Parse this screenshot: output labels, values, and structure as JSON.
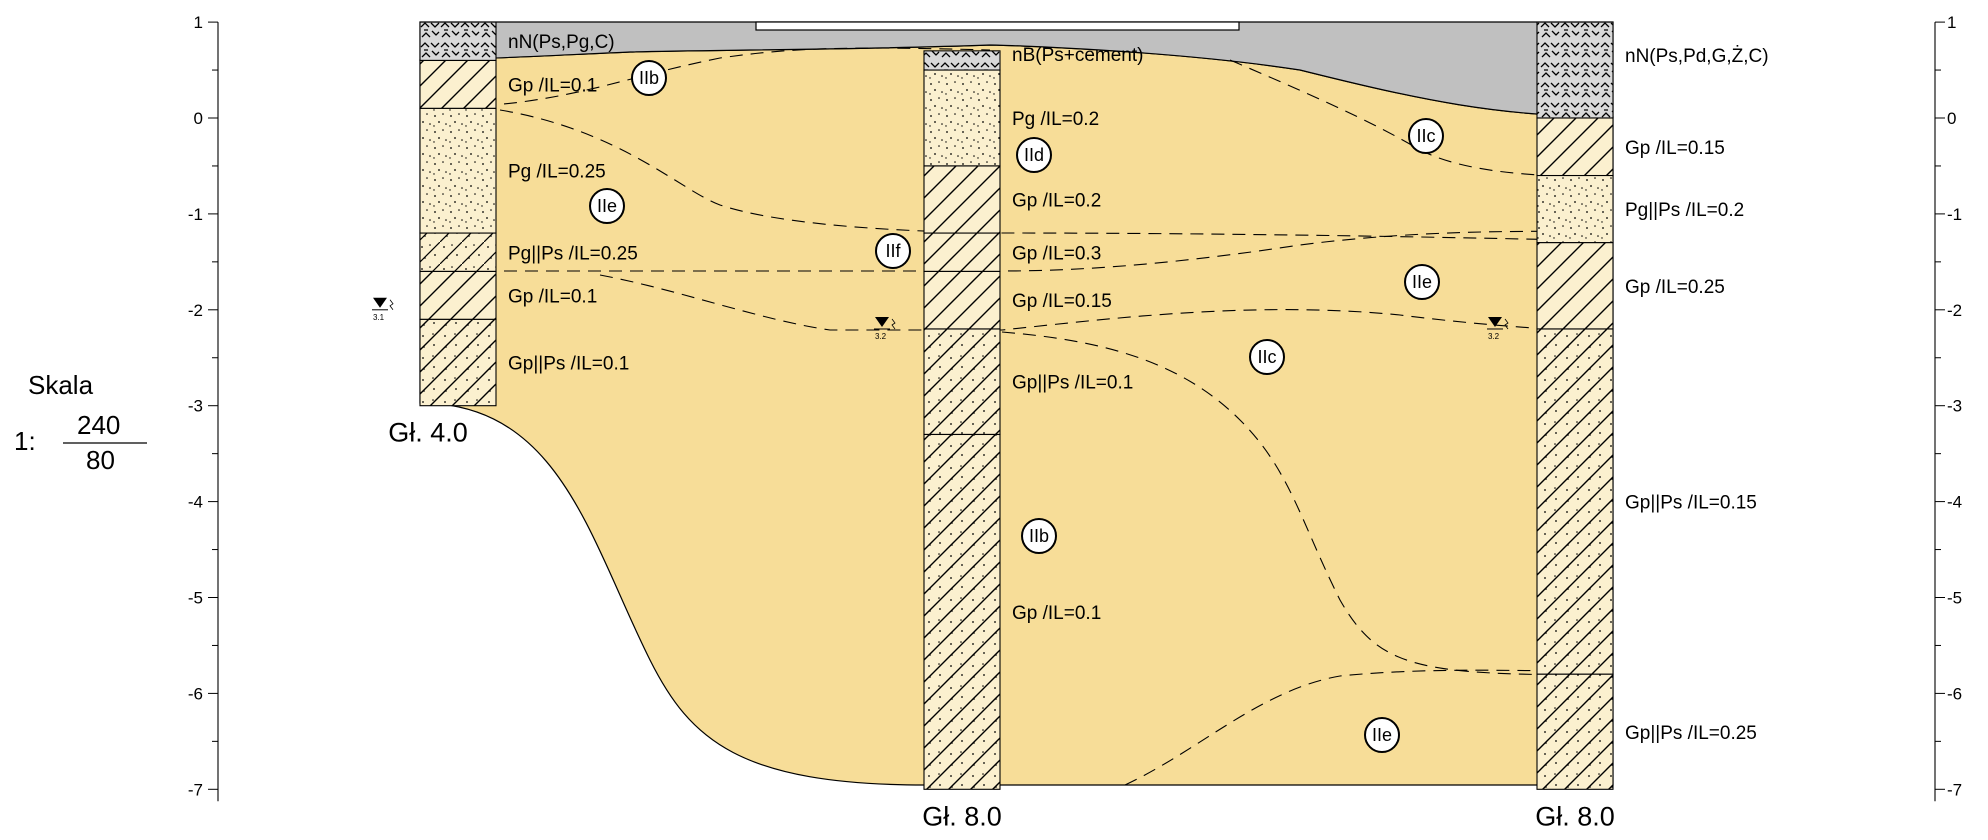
{
  "colors": {
    "soil": "#f7dd98",
    "fill": "#c0c0c0",
    "line": "#000000",
    "column_bg": "#fbf0cf"
  },
  "scale": {
    "label": "Skala",
    "prefix": "1:",
    "numerator": "240",
    "denominator": "80"
  },
  "axis": {
    "ticks": [
      {
        "value": 1,
        "label": "1"
      },
      {
        "value": 0,
        "label": "0"
      },
      {
        "value": -1,
        "label": "-1"
      },
      {
        "value": -2,
        "label": "-2"
      },
      {
        "value": -3,
        "label": "-3"
      },
      {
        "value": -4,
        "label": "-4"
      },
      {
        "value": -5,
        "label": "-5"
      },
      {
        "value": -6,
        "label": "-6"
      },
      {
        "value": -7,
        "label": "-7"
      }
    ],
    "range": [
      -7,
      1
    ]
  },
  "boreholes": [
    {
      "name": "hole-1",
      "top": 1.0,
      "depth_label": "Gł. 4.0",
      "layers": [
        {
          "from": 1.0,
          "to": 0.6,
          "pattern": "fill",
          "label": "nN(Ps,Pg,C)"
        },
        {
          "from": 0.6,
          "to": 0.1,
          "pattern": "clay",
          "label": "Gp /IL=0.1"
        },
        {
          "from": 0.1,
          "to": -1.2,
          "pattern": "sand",
          "label": "Pg /IL=0.25"
        },
        {
          "from": -1.2,
          "to": -1.6,
          "pattern": "sand-clay",
          "label": "Pg||Ps /IL=0.25"
        },
        {
          "from": -1.6,
          "to": -2.1,
          "pattern": "clay",
          "label": "Gp /IL=0.1"
        },
        {
          "from": -2.1,
          "to": -3.0,
          "pattern": "clay-sand",
          "label": "Gp||Ps /IL=0.1"
        }
      ],
      "water": {
        "level": -2.0,
        "label": "3.1"
      }
    },
    {
      "name": "hole-2",
      "top": 0.7,
      "depth_label": "Gł. 8.0",
      "layers": [
        {
          "from": 0.7,
          "to": 0.5,
          "pattern": "fill",
          "label": "nB(Ps+cement)"
        },
        {
          "from": 0.5,
          "to": -0.5,
          "pattern": "sand",
          "label": "Pg /IL=0.2"
        },
        {
          "from": -0.5,
          "to": -1.2,
          "pattern": "clay",
          "label": "Gp /IL=0.2"
        },
        {
          "from": -1.2,
          "to": -1.6,
          "pattern": "clay",
          "label": "Gp /IL=0.3"
        },
        {
          "from": -1.6,
          "to": -2.2,
          "pattern": "clay",
          "label": "Gp /IL=0.15"
        },
        {
          "from": -2.2,
          "to": -3.3,
          "pattern": "clay-sand",
          "label": "Gp||Ps /IL=0.1"
        },
        {
          "from": -3.3,
          "to": -7.0,
          "pattern": "clay-sand",
          "label": "Gp /IL=0.1"
        }
      ],
      "water": {
        "level": -2.2,
        "label": "3.2"
      }
    },
    {
      "name": "hole-3",
      "top": 1.0,
      "depth_label": "Gł. 8.0",
      "layers": [
        {
          "from": 1.0,
          "to": 0.0,
          "pattern": "fill",
          "label": "nN(Ps,Pd,G,Ż,C)"
        },
        {
          "from": 0.0,
          "to": -0.6,
          "pattern": "clay",
          "label": "Gp /IL=0.15"
        },
        {
          "from": -0.6,
          "to": -1.3,
          "pattern": "sand",
          "label": "Pg||Ps /IL=0.2"
        },
        {
          "from": -1.3,
          "to": -2.2,
          "pattern": "clay",
          "label": "Gp /IL=0.25"
        },
        {
          "from": -2.2,
          "to": -5.8,
          "pattern": "clay-sand",
          "label": "Gp||Ps /IL=0.15"
        },
        {
          "from": -5.8,
          "to": -7.0,
          "pattern": "clay-sand",
          "label": "Gp||Ps /IL=0.25"
        }
      ],
      "water": {
        "level": -2.2,
        "label": "3.2"
      }
    }
  ],
  "units": [
    "IIb",
    "IIe",
    "IIf",
    "IId",
    "IIc",
    "IIe",
    "IIc",
    "IIb",
    "IIe"
  ]
}
